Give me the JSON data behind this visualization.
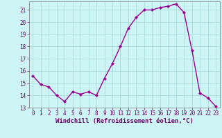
{
  "x": [
    0,
    1,
    2,
    3,
    4,
    5,
    6,
    7,
    8,
    9,
    10,
    11,
    12,
    13,
    14,
    15,
    16,
    17,
    18,
    19,
    20,
    21,
    22,
    23
  ],
  "y": [
    15.6,
    14.9,
    14.7,
    14.0,
    13.5,
    14.3,
    14.1,
    14.3,
    14.0,
    15.4,
    16.6,
    18.0,
    19.5,
    20.4,
    21.0,
    21.0,
    21.2,
    21.3,
    21.5,
    20.8,
    17.7,
    14.2,
    13.8,
    13.1
  ],
  "line_color": "#990099",
  "marker": "D",
  "marker_size": 2,
  "bg_color": "#cef5f5",
  "grid_color": "#aadddd",
  "xlabel": "Windchill (Refroidissement éolien,°C)",
  "xlim": [
    -0.5,
    23.5
  ],
  "ylim": [
    13.0,
    21.7
  ],
  "yticks": [
    13,
    14,
    15,
    16,
    17,
    18,
    19,
    20,
    21
  ],
  "xticks": [
    0,
    1,
    2,
    3,
    4,
    5,
    6,
    7,
    8,
    9,
    10,
    11,
    12,
    13,
    14,
    15,
    16,
    17,
    18,
    19,
    20,
    21,
    22,
    23
  ],
  "tick_label_fontsize": 5.5,
  "xlabel_fontsize": 6.5,
  "line_width": 1.0
}
